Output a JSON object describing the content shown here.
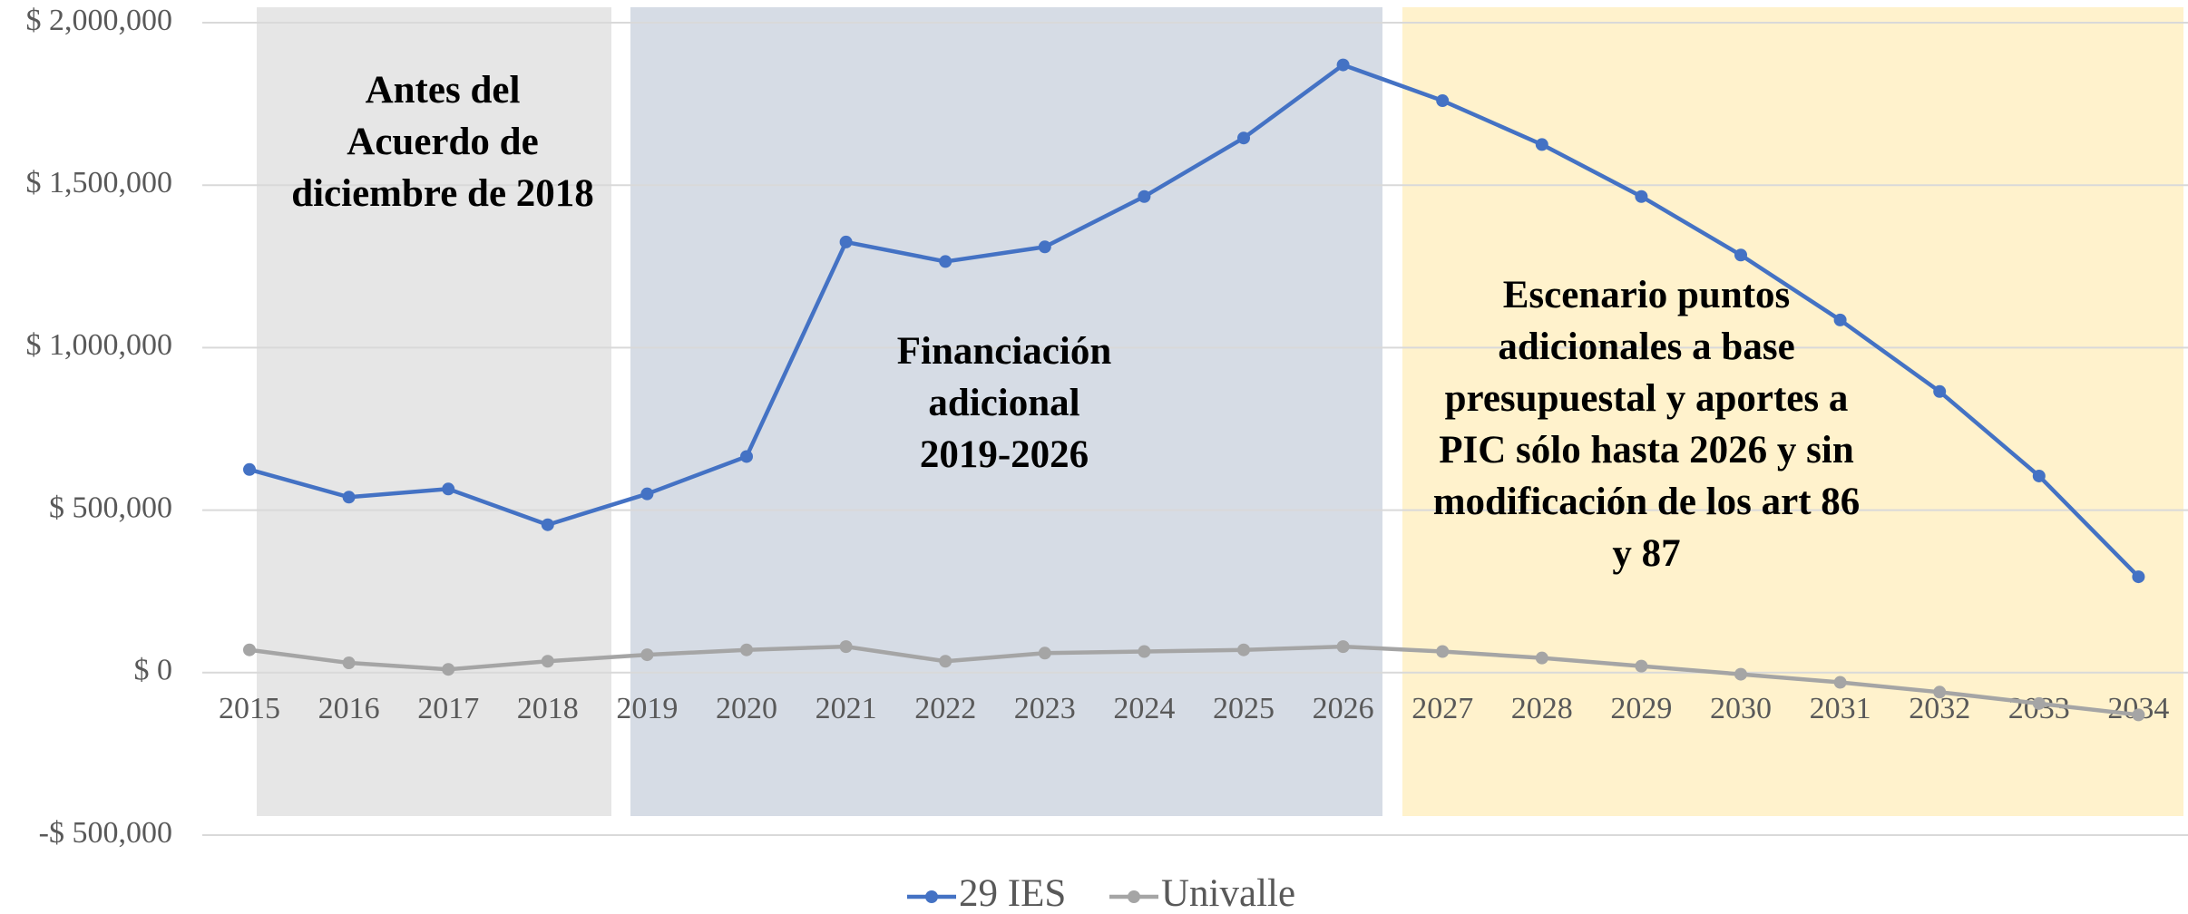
{
  "chart_data": {
    "type": "line",
    "categories": [
      "2015",
      "2016",
      "2017",
      "2018",
      "2019",
      "2020",
      "2021",
      "2022",
      "2023",
      "2024",
      "2025",
      "2026",
      "2027",
      "2028",
      "2029",
      "2030",
      "2031",
      "2032",
      "2033",
      "2034"
    ],
    "series": [
      {
        "name": "29 IES",
        "color": "#4472c4",
        "values": [
          625000,
          540000,
          565000,
          455000,
          550000,
          665000,
          1325000,
          1265000,
          1310000,
          1465000,
          1645000,
          1870000,
          1760000,
          1625000,
          1465000,
          1285000,
          1085000,
          865000,
          605000,
          295000
        ]
      },
      {
        "name": "Univalle",
        "color": "#a5a5a5",
        "values": [
          70000,
          30000,
          10000,
          35000,
          55000,
          70000,
          80000,
          35000,
          60000,
          65000,
          70000,
          80000,
          65000,
          45000,
          20000,
          -5000,
          -30000,
          -60000,
          -95000,
          -130000
        ]
      }
    ],
    "ylim": [
      -500000,
      2000000
    ],
    "yticks": [
      {
        "value": -500000,
        "label": "-$ 500,000"
      },
      {
        "value": 0,
        "label": "$ 0"
      },
      {
        "value": 500000,
        "label": "$ 500,000"
      },
      {
        "value": 1000000,
        "label": "$ 1,000,000"
      },
      {
        "value": 1500000,
        "label": "$ 1,500,000"
      },
      {
        "value": 2000000,
        "label": "$ 2,000,000"
      }
    ],
    "grid": true,
    "legend": "bottom",
    "annotations": [
      {
        "lines": [
          "Antes del",
          "Acuerdo de",
          "diciembre de 2018"
        ],
        "color": "#e6e6e6"
      },
      {
        "lines": [
          "Financiación",
          "adicional",
          "2019-2026"
        ],
        "color": "#d6dce5"
      },
      {
        "lines": [
          "Escenario puntos",
          "adicionales a base",
          "presupuestal y aportes a",
          "PIC sólo hasta 2026 y sin",
          "modificación de los art 86",
          "y 87"
        ],
        "color": "#fff2cc"
      }
    ]
  }
}
